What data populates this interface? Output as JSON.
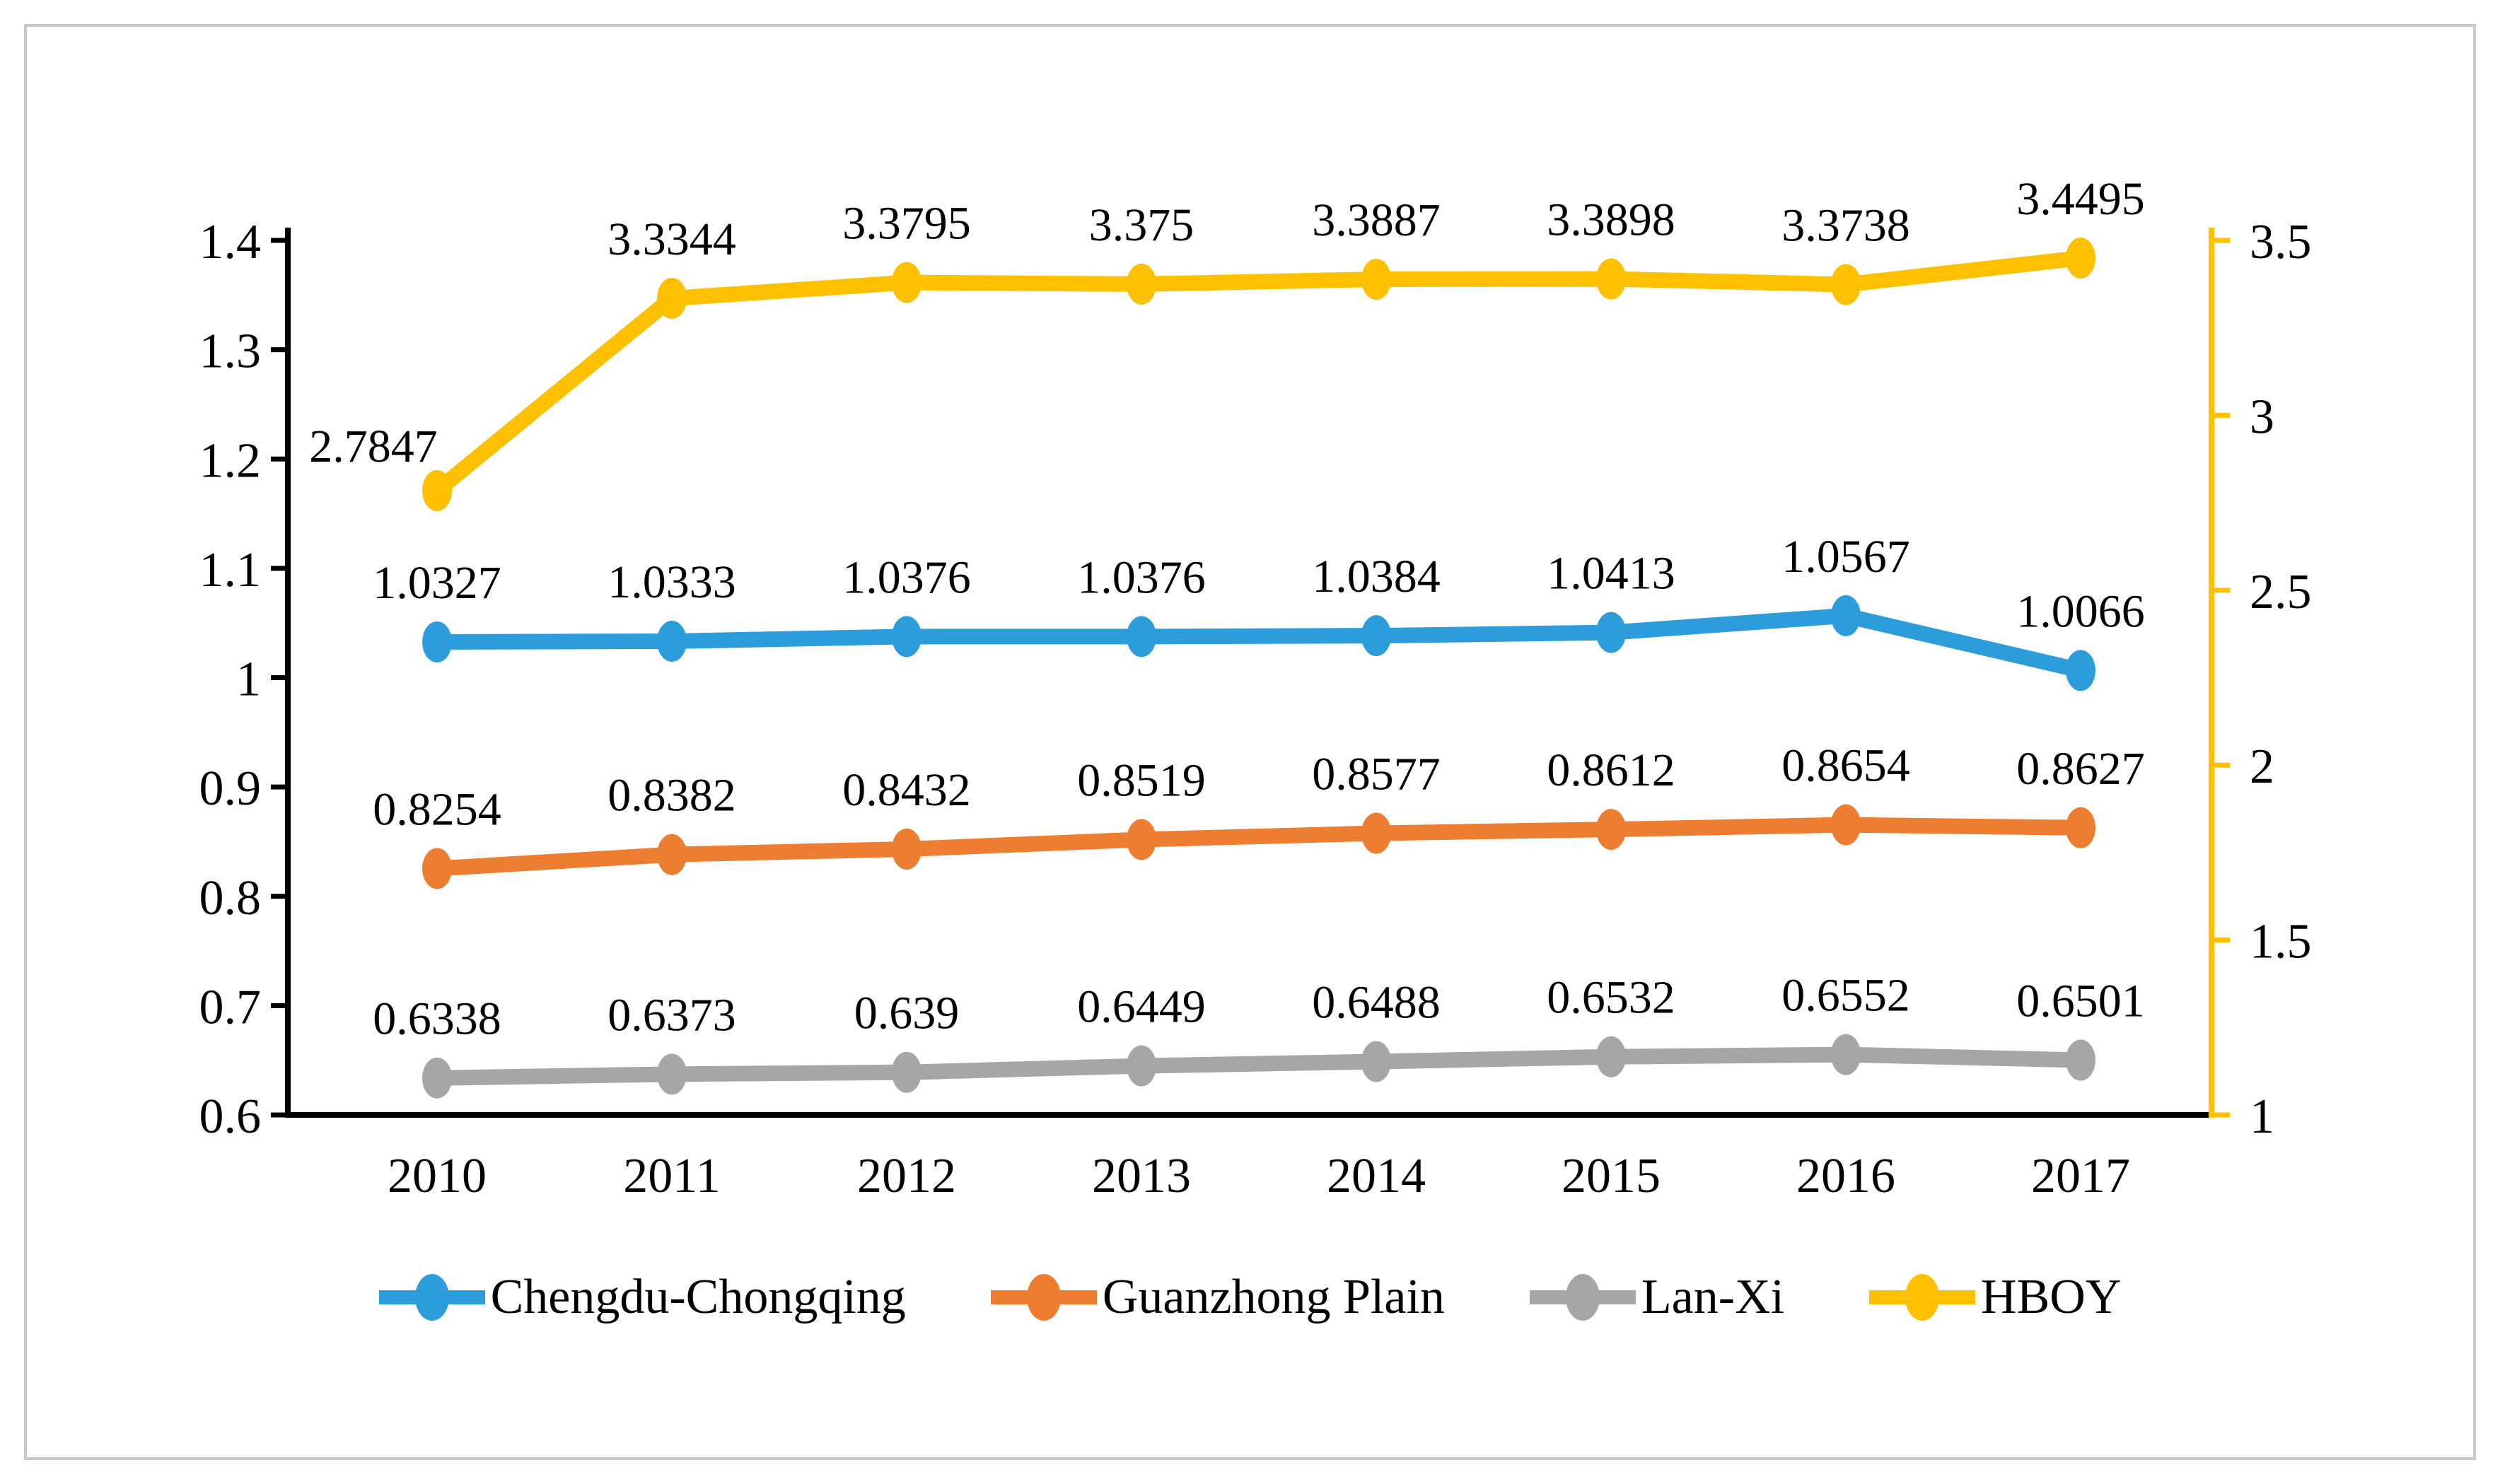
{
  "chart_data": {
    "type": "line",
    "title": "",
    "x": [
      "2010",
      "2011",
      "2012",
      "2013",
      "2014",
      "2015",
      "2016",
      "2017"
    ],
    "grid": false,
    "legend_position": "bottom",
    "left_axis": {
      "min": 0.6,
      "max": 1.4,
      "ticks": [
        "1.4",
        "1.3",
        "1.2",
        "1.1",
        "1",
        "0.9",
        "0.8",
        "0.7",
        "0.6"
      ],
      "color": "#000000"
    },
    "right_axis": {
      "min": 1,
      "max": 3.5,
      "ticks": [
        "3.5",
        "3",
        "2.5",
        "2",
        "1.5",
        "1"
      ],
      "color": "#FFC000"
    },
    "series": [
      {
        "name": "Chengdu-Chongqing",
        "axis": "left",
        "color": "#2D9CDB",
        "values": [
          1.0327,
          1.0333,
          1.0376,
          1.0376,
          1.0384,
          1.0413,
          1.0567,
          1.0066
        ],
        "labels": [
          "1.0327",
          "1.0333",
          "1.0376",
          "1.0376",
          "1.0384",
          "1.0413",
          "1.0567",
          "1.0066"
        ]
      },
      {
        "name": "Guanzhong Plain",
        "axis": "left",
        "color": "#ED7D31",
        "values": [
          0.8254,
          0.8382,
          0.8432,
          0.8519,
          0.8577,
          0.8612,
          0.8654,
          0.8627
        ],
        "labels": [
          "0.8254",
          "0.8382",
          "0.8432",
          "0.8519",
          "0.8577",
          "0.8612",
          "0.8654",
          "0.8627"
        ]
      },
      {
        "name": "Lan-Xi",
        "axis": "left",
        "color": "#A6A6A6",
        "values": [
          0.6338,
          0.6373,
          0.639,
          0.6449,
          0.6488,
          0.6532,
          0.6552,
          0.6501
        ],
        "labels": [
          "0.6338",
          "0.6373",
          "0.639",
          "0.6449",
          "0.6488",
          "0.6532",
          "0.6552",
          "0.6501"
        ]
      },
      {
        "name": "HBOY",
        "axis": "right",
        "color": "#FFC000",
        "values": [
          2.7847,
          3.3344,
          3.3795,
          3.375,
          3.3887,
          3.3898,
          3.3738,
          3.4495
        ],
        "labels": [
          "2.7847",
          "3.3344",
          "3.3795",
          "3.375",
          "3.3887",
          "3.3898",
          "3.3738",
          "3.4495"
        ],
        "label_offsets": {
          "0": [
            -90,
            21
          ]
        }
      }
    ]
  }
}
